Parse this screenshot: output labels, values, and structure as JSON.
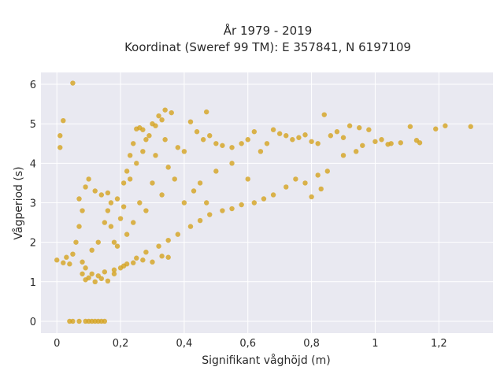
{
  "chart_data": {
    "type": "scatter",
    "title_line1": "År 1979 - 2019",
    "title_line2": "Koordinat (Sweref 99 TM): E 357841, N 6197109",
    "xlabel": "Signifikant våghöjd (m)",
    "ylabel": "Vågperiod (s)",
    "xlim": [
      -0.05,
      1.37
    ],
    "ylim": [
      -0.3,
      6.3
    ],
    "x_ticks": [
      {
        "value": 0,
        "label": "0"
      },
      {
        "value": 0.2,
        "label": "0,2"
      },
      {
        "value": 0.4,
        "label": "0,4"
      },
      {
        "value": 0.6,
        "label": "0,6"
      },
      {
        "value": 0.8,
        "label": "0,8"
      },
      {
        "value": 1.0,
        "label": "1"
      },
      {
        "value": 1.2,
        "label": "1,2"
      }
    ],
    "y_ticks": [
      {
        "value": 0,
        "label": "0"
      },
      {
        "value": 1,
        "label": "1"
      },
      {
        "value": 2,
        "label": "2"
      },
      {
        "value": 3,
        "label": "3"
      },
      {
        "value": 4,
        "label": "4"
      },
      {
        "value": 5,
        "label": "5"
      },
      {
        "value": 6,
        "label": "6"
      }
    ],
    "grid": true,
    "legend": "none",
    "point_color": "#d4a21f",
    "background_color": "#e9e9f1",
    "series": [
      {
        "points": [
          [
            0.05,
            6.03
          ],
          [
            0.01,
            4.7
          ],
          [
            0.01,
            4.4
          ],
          [
            0.02,
            5.08
          ],
          [
            0.0,
            1.55
          ],
          [
            0.02,
            1.48
          ],
          [
            0.03,
            1.62
          ],
          [
            0.04,
            1.45
          ],
          [
            0.05,
            1.7
          ],
          [
            0.06,
            2.0
          ],
          [
            0.07,
            2.4
          ],
          [
            0.08,
            2.8
          ],
          [
            0.07,
            3.1
          ],
          [
            0.09,
            3.4
          ],
          [
            0.1,
            3.6
          ],
          [
            0.08,
            1.2
          ],
          [
            0.09,
            1.05
          ],
          [
            0.1,
            1.1
          ],
          [
            0.12,
            1.0
          ],
          [
            0.14,
            1.08
          ],
          [
            0.16,
            1.02
          ],
          [
            0.18,
            1.2
          ],
          [
            0.12,
            3.3
          ],
          [
            0.14,
            3.2
          ],
          [
            0.16,
            3.25
          ],
          [
            0.17,
            3.0
          ],
          [
            0.15,
            2.5
          ],
          [
            0.13,
            2.0
          ],
          [
            0.11,
            1.8
          ],
          [
            0.19,
            1.9
          ],
          [
            0.2,
            2.6
          ],
          [
            0.21,
            3.5
          ],
          [
            0.22,
            3.8
          ],
          [
            0.23,
            4.2
          ],
          [
            0.24,
            4.5
          ],
          [
            0.25,
            4.87
          ],
          [
            0.26,
            4.9
          ],
          [
            0.27,
            4.85
          ],
          [
            0.28,
            4.6
          ],
          [
            0.29,
            4.7
          ],
          [
            0.3,
            5.0
          ],
          [
            0.31,
            4.95
          ],
          [
            0.32,
            5.2
          ],
          [
            0.34,
            5.35
          ],
          [
            0.36,
            5.28
          ],
          [
            0.33,
            5.1
          ],
          [
            0.42,
            5.05
          ],
          [
            0.44,
            4.8
          ],
          [
            0.47,
            5.3
          ],
          [
            0.38,
            4.4
          ],
          [
            0.4,
            4.3
          ],
          [
            0.46,
            4.6
          ],
          [
            0.48,
            4.7
          ],
          [
            0.5,
            4.5
          ],
          [
            0.52,
            4.45
          ],
          [
            0.55,
            4.4
          ],
          [
            0.58,
            4.5
          ],
          [
            0.6,
            4.6
          ],
          [
            0.62,
            4.8
          ],
          [
            0.64,
            4.3
          ],
          [
            0.66,
            4.5
          ],
          [
            0.68,
            4.85
          ],
          [
            0.7,
            4.75
          ],
          [
            0.72,
            4.7
          ],
          [
            0.74,
            4.6
          ],
          [
            0.76,
            4.65
          ],
          [
            0.78,
            4.72
          ],
          [
            0.8,
            4.55
          ],
          [
            0.82,
            4.5
          ],
          [
            0.84,
            5.23
          ],
          [
            0.86,
            4.7
          ],
          [
            0.88,
            4.8
          ],
          [
            0.9,
            4.65
          ],
          [
            0.92,
            4.95
          ],
          [
            0.95,
            4.9
          ],
          [
            0.98,
            4.85
          ],
          [
            1.0,
            4.55
          ],
          [
            1.02,
            4.6
          ],
          [
            1.04,
            4.48
          ],
          [
            1.08,
            4.52
          ],
          [
            1.11,
            4.93
          ],
          [
            1.13,
            4.58
          ],
          [
            1.19,
            4.87
          ],
          [
            1.22,
            4.95
          ],
          [
            1.3,
            4.93
          ],
          [
            1.14,
            4.52
          ],
          [
            1.05,
            4.5
          ],
          [
            0.96,
            4.45
          ],
          [
            0.94,
            4.3
          ],
          [
            0.9,
            4.2
          ],
          [
            0.85,
            3.8
          ],
          [
            0.82,
            3.7
          ],
          [
            0.8,
            3.15
          ],
          [
            0.83,
            3.35
          ],
          [
            0.78,
            3.5
          ],
          [
            0.75,
            3.6
          ],
          [
            0.72,
            3.4
          ],
          [
            0.68,
            3.2
          ],
          [
            0.65,
            3.1
          ],
          [
            0.62,
            3.0
          ],
          [
            0.58,
            2.95
          ],
          [
            0.55,
            2.85
          ],
          [
            0.52,
            2.8
          ],
          [
            0.48,
            2.7
          ],
          [
            0.45,
            2.55
          ],
          [
            0.42,
            2.4
          ],
          [
            0.38,
            2.2
          ],
          [
            0.35,
            2.05
          ],
          [
            0.32,
            1.9
          ],
          [
            0.28,
            1.75
          ],
          [
            0.25,
            1.6
          ],
          [
            0.22,
            1.45
          ],
          [
            0.2,
            1.35
          ],
          [
            0.18,
            1.3
          ],
          [
            0.15,
            1.25
          ],
          [
            0.13,
            1.15
          ],
          [
            0.11,
            1.2
          ],
          [
            0.09,
            1.35
          ],
          [
            0.08,
            1.5
          ],
          [
            0.3,
            1.5
          ],
          [
            0.33,
            1.65
          ],
          [
            0.35,
            1.62
          ],
          [
            0.27,
            1.55
          ],
          [
            0.24,
            1.48
          ],
          [
            0.21,
            1.4
          ],
          [
            0.4,
            3.0
          ],
          [
            0.45,
            3.5
          ],
          [
            0.5,
            3.8
          ],
          [
            0.55,
            4.0
          ],
          [
            0.6,
            3.6
          ],
          [
            0.35,
            3.9
          ],
          [
            0.3,
            3.5
          ],
          [
            0.26,
            3.0
          ],
          [
            0.24,
            2.5
          ],
          [
            0.22,
            2.2
          ],
          [
            0.28,
            2.8
          ],
          [
            0.33,
            3.2
          ],
          [
            0.37,
            3.6
          ],
          [
            0.43,
            3.3
          ],
          [
            0.47,
            3.0
          ],
          [
            0.18,
            2.0
          ],
          [
            0.17,
            2.4
          ],
          [
            0.16,
            2.8
          ],
          [
            0.19,
            3.1
          ],
          [
            0.21,
            2.9
          ],
          [
            0.23,
            3.6
          ],
          [
            0.25,
            4.0
          ],
          [
            0.27,
            4.3
          ],
          [
            0.31,
            4.2
          ],
          [
            0.34,
            4.6
          ],
          [
            0.05,
            0.0
          ],
          [
            0.07,
            0.0
          ],
          [
            0.09,
            0.0
          ],
          [
            0.1,
            0.0
          ],
          [
            0.11,
            0.0
          ],
          [
            0.12,
            0.0
          ],
          [
            0.13,
            0.0
          ],
          [
            0.14,
            0.0
          ],
          [
            0.15,
            0.0
          ],
          [
            0.04,
            0.0
          ]
        ]
      }
    ]
  }
}
